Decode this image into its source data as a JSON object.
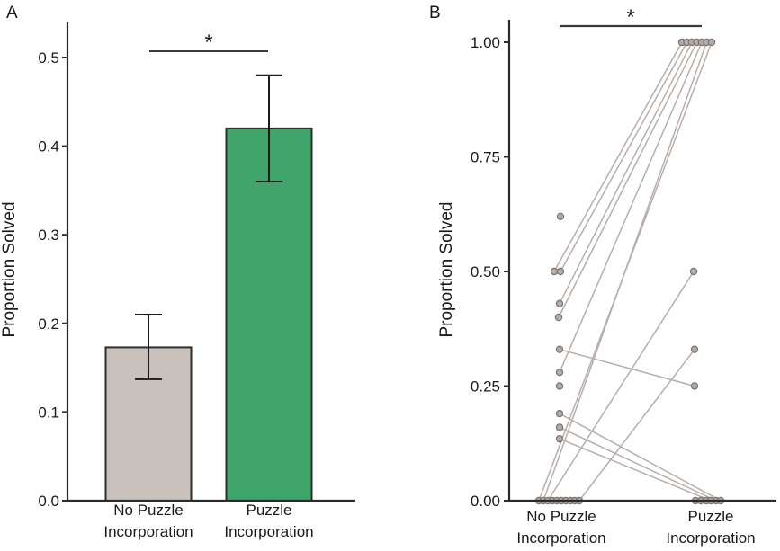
{
  "figure": {
    "background": "#ffffff",
    "panel_a_letter": "A",
    "panel_b_letter": "B"
  },
  "chart_data": [
    {
      "id": "panel_a",
      "type": "bar",
      "title": "",
      "xlabel": "",
      "ylabel": "Proportion Solved",
      "categories": [
        [
          "No Puzzle",
          "Incorporation"
        ],
        [
          "Puzzle",
          "Incorporation"
        ]
      ],
      "values": [
        0.173,
        0.42
      ],
      "error_low": [
        0.137,
        0.36
      ],
      "error_high": [
        0.21,
        0.48
      ],
      "bar_colors": [
        "#c9c2bc",
        "#3fa56a"
      ],
      "bar_stroke": "#2d2d2b",
      "error_color": "#1b1b1b",
      "ytick_values": [
        0,
        0.1,
        0.2,
        0.3,
        0.4,
        0.5
      ],
      "ytick_labels": [
        "0.0",
        "0.1",
        "0.2",
        "0.3",
        "0.4",
        "0.5"
      ],
      "ylim": [
        0,
        0.54
      ],
      "grid": false,
      "legend": "none",
      "significance_label": "*"
    },
    {
      "id": "panel_b",
      "type": "paired-scatter",
      "title": "",
      "xlabel": "",
      "ylabel": "Proportion Solved",
      "categories": [
        [
          "No Puzzle",
          "Incorporation"
        ],
        [
          "Puzzle",
          "Incorporation"
        ]
      ],
      "ytick_values": [
        0,
        0.25,
        0.5,
        0.75,
        1.0
      ],
      "ytick_labels": [
        "0.00",
        "0.25",
        "0.50",
        "0.75",
        "1.00"
      ],
      "ylim": [
        0,
        1.05
      ],
      "grid": false,
      "legend": "none",
      "point_fill": "#b3aba6",
      "point_stroke": "#7c736f",
      "line_color": "#b7aeaa",
      "left_points": [
        {
          "v": 0.62,
          "dx": -1
        },
        {
          "v": 0.5,
          "dx": -8
        },
        {
          "v": 0.5,
          "dx": -1
        },
        {
          "v": 0.43,
          "dx": -2
        },
        {
          "v": 0.4,
          "dx": -3
        },
        {
          "v": 0.33,
          "dx": -2
        },
        {
          "v": 0.28,
          "dx": -2
        },
        {
          "v": 0.25,
          "dx": -2
        },
        {
          "v": 0.19,
          "dx": -2
        },
        {
          "v": 0.16,
          "dx": -2
        },
        {
          "v": 0.135,
          "dx": -2
        },
        {
          "v": 0,
          "dx": -25
        },
        {
          "v": 0,
          "dx": -20
        },
        {
          "v": 0,
          "dx": -15
        },
        {
          "v": 0,
          "dx": -10
        },
        {
          "v": 0,
          "dx": -5
        },
        {
          "v": 0,
          "dx": 0
        },
        {
          "v": 0,
          "dx": 5
        },
        {
          "v": 0,
          "dx": 10
        },
        {
          "v": 0,
          "dx": 15
        },
        {
          "v": 0,
          "dx": 20
        }
      ],
      "right_points": [
        {
          "v": 1,
          "dx": -32
        },
        {
          "v": 1,
          "dx": -26.5
        },
        {
          "v": 1,
          "dx": -21
        },
        {
          "v": 1,
          "dx": -15.5
        },
        {
          "v": 1,
          "dx": -10
        },
        {
          "v": 1,
          "dx": -4.5
        },
        {
          "v": 1,
          "dx": 1
        },
        {
          "v": 0.5,
          "dx": -19
        },
        {
          "v": 0.33,
          "dx": -18
        },
        {
          "v": 0.25,
          "dx": -18
        },
        {
          "v": 0,
          "dx": -17
        },
        {
          "v": 0,
          "dx": -11
        },
        {
          "v": 0,
          "dx": -5
        },
        {
          "v": 0,
          "dx": 0
        },
        {
          "v": 0,
          "dx": 6
        },
        {
          "v": 0,
          "dx": 11
        }
      ],
      "pairs": [
        [
          1,
          0
        ],
        [
          2,
          1
        ],
        [
          3,
          2
        ],
        [
          4,
          3
        ],
        [
          6,
          4
        ],
        [
          12,
          5
        ],
        [
          11,
          6
        ],
        [
          13,
          7
        ],
        [
          20,
          8
        ],
        [
          5,
          9
        ],
        [
          8,
          15
        ],
        [
          9,
          14
        ],
        [
          10,
          13
        ]
      ],
      "significance_label": "*"
    }
  ]
}
